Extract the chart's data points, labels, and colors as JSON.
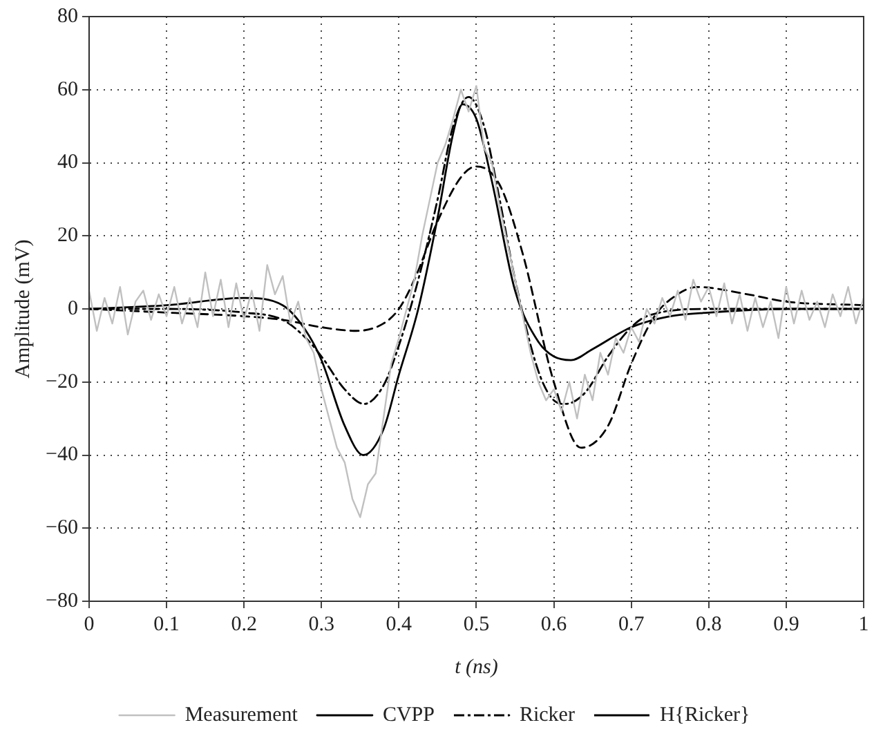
{
  "chart_data": {
    "type": "line",
    "xlabel": "t (ns)",
    "ylabel": "Amplitude (mV)",
    "xlim": [
      0,
      1
    ],
    "xticks": [
      0,
      0.1,
      0.2,
      0.3,
      0.4,
      0.5,
      0.6,
      0.7,
      0.8,
      0.9,
      1
    ],
    "ylim": [
      -80,
      80
    ],
    "yticks": [
      {
        "value": -80,
        "label": "−80"
      },
      {
        "value": -60,
        "label": "−60"
      },
      {
        "value": -40,
        "label": "−40"
      },
      {
        "value": -20,
        "label": "−20"
      },
      0,
      20,
      40,
      60,
      80
    ],
    "grid": true,
    "legend": "bottom",
    "marker": "none",
    "series": [
      {
        "name": "Measurement",
        "color": "#c0c0c0",
        "line_style": "solid",
        "x": [
          0,
          0.01,
          0.02,
          0.03,
          0.04,
          0.05,
          0.06,
          0.07,
          0.08,
          0.09,
          0.1,
          0.11,
          0.12,
          0.13,
          0.14,
          0.15,
          0.16,
          0.17,
          0.18,
          0.19,
          0.2,
          0.21,
          0.22,
          0.23,
          0.24,
          0.25,
          0.26,
          0.27,
          0.28,
          0.29,
          0.3,
          0.31,
          0.32,
          0.33,
          0.34,
          0.35,
          0.36,
          0.37,
          0.38,
          0.39,
          0.4,
          0.41,
          0.42,
          0.43,
          0.44,
          0.45,
          0.46,
          0.47,
          0.48,
          0.49,
          0.5,
          0.51,
          0.52,
          0.53,
          0.54,
          0.55,
          0.56,
          0.57,
          0.58,
          0.59,
          0.6,
          0.61,
          0.62,
          0.63,
          0.64,
          0.65,
          0.66,
          0.67,
          0.68,
          0.69,
          0.7,
          0.71,
          0.72,
          0.73,
          0.74,
          0.75,
          0.76,
          0.77,
          0.78,
          0.79,
          0.8,
          0.81,
          0.82,
          0.83,
          0.84,
          0.85,
          0.86,
          0.87,
          0.88,
          0.89,
          0.9,
          0.91,
          0.92,
          0.93,
          0.94,
          0.95,
          0.96,
          0.97,
          0.98,
          0.99,
          1
        ],
        "values": [
          5,
          -6,
          3,
          -4,
          6,
          -7,
          2,
          5,
          -3,
          4,
          -2,
          6,
          -4,
          3,
          -5,
          10,
          -2,
          8,
          -5,
          7,
          -3,
          5,
          -6,
          12,
          4,
          9,
          -4,
          2,
          -8,
          -12,
          -22,
          -30,
          -38,
          -42,
          -52,
          -57,
          -48,
          -45,
          -30,
          -15,
          -8,
          0,
          8,
          20,
          30,
          40,
          45,
          52,
          60,
          54,
          61,
          44,
          40,
          28,
          18,
          8,
          -2,
          -12,
          -20,
          -25,
          -22,
          -28,
          -20,
          -30,
          -18,
          -25,
          -12,
          -18,
          -8,
          -12,
          -5,
          -9,
          0,
          -4,
          3,
          -2,
          5,
          -3,
          8,
          2,
          6,
          -2,
          7,
          -4,
          4,
          -6,
          3,
          -5,
          2,
          -8,
          6,
          -4,
          5,
          -3,
          2,
          -5,
          4,
          -2,
          6,
          -4,
          3
        ]
      },
      {
        "name": "CVPP",
        "color": "#000000",
        "line_style": "solid",
        "x": [
          0,
          0.1,
          0.2,
          0.25,
          0.28,
          0.3,
          0.33,
          0.354,
          0.38,
          0.4,
          0.425,
          0.45,
          0.47,
          0.482,
          0.5,
          0.52,
          0.55,
          0.58,
          0.6,
          0.622,
          0.65,
          0.7,
          0.75,
          0.8,
          0.9,
          1
        ],
        "values": [
          0,
          1,
          3,
          1,
          -6,
          -14,
          -32,
          -40,
          -33,
          -18,
          0,
          25,
          48,
          56,
          52,
          35,
          5,
          -9,
          -13,
          -14,
          -11,
          -5,
          -2,
          -1,
          0,
          0
        ]
      },
      {
        "name": "Ricker",
        "color": "#000000",
        "line_style": "dashdot",
        "x": [
          0,
          0.1,
          0.2,
          0.25,
          0.28,
          0.3,
          0.33,
          0.355,
          0.38,
          0.4,
          0.425,
          0.45,
          0.47,
          0.49,
          0.51,
          0.53,
          0.55,
          0.58,
          0.6,
          0.615,
          0.64,
          0.67,
          0.7,
          0.72,
          0.8,
          1
        ],
        "values": [
          0,
          0,
          -1,
          -3,
          -8,
          -13,
          -22,
          -26,
          -21,
          -10,
          8,
          30,
          50,
          58,
          50,
          30,
          8,
          -17,
          -25,
          -26,
          -23,
          -13,
          -5,
          -2,
          0,
          0
        ]
      },
      {
        "name": "H{Ricker}",
        "color": "#000000",
        "line_style": "dashed",
        "x": [
          0,
          0.1,
          0.2,
          0.25,
          0.3,
          0.345,
          0.38,
          0.4,
          0.42,
          0.45,
          0.48,
          0.5,
          0.53,
          0.56,
          0.6,
          0.635,
          0.67,
          0.7,
          0.73,
          0.76,
          0.785,
          0.85,
          0.9,
          1
        ],
        "values": [
          0,
          -1,
          -2,
          -3,
          -5,
          -6,
          -4,
          0,
          8,
          24,
          36,
          39,
          34,
          15,
          -20,
          -38,
          -32,
          -15,
          -2,
          4,
          6,
          4,
          2,
          1
        ]
      }
    ]
  }
}
